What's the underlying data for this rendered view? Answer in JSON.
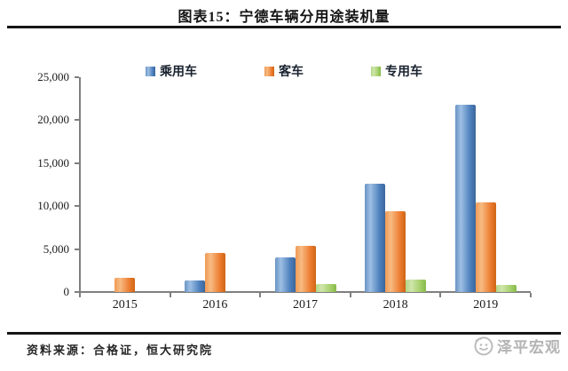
{
  "header": {
    "title": "图表15：宁德车辆分用途装机量"
  },
  "footer": {
    "source": "资料来源：合格证，恒大研究院",
    "logo_text": "泽平宏观"
  },
  "colors": {
    "series_passenger": "#4f81bd",
    "series_bus": "#ed7d31",
    "series_special": "#a5cf6a",
    "axis": "#7f7f7f",
    "rule": "#151515",
    "logo_gray": "#b4b4b4"
  },
  "chart_data": {
    "type": "bar",
    "title": "图表15：宁德车辆分用途装机量",
    "categories": [
      "2015",
      "2016",
      "2017",
      "2018",
      "2019"
    ],
    "series": [
      {
        "name": "乘用车",
        "color": "#4f81bd",
        "values": [
          0,
          1350,
          4050,
          12600,
          21800
        ]
      },
      {
        "name": "客车",
        "color": "#ed7d31",
        "values": [
          1650,
          4550,
          5400,
          9350,
          10400
        ]
      },
      {
        "name": "专用车",
        "color": "#a5cf6a",
        "values": [
          0,
          0,
          900,
          1450,
          850
        ]
      }
    ],
    "xlabel": "",
    "ylabel": "",
    "ylim": [
      0,
      25000
    ],
    "ytick_step": 5000,
    "ytick_labels": [
      "0",
      "5,000",
      "10,000",
      "15,000",
      "20,000",
      "25,000"
    ],
    "legend_position": "top",
    "grid": false
  }
}
